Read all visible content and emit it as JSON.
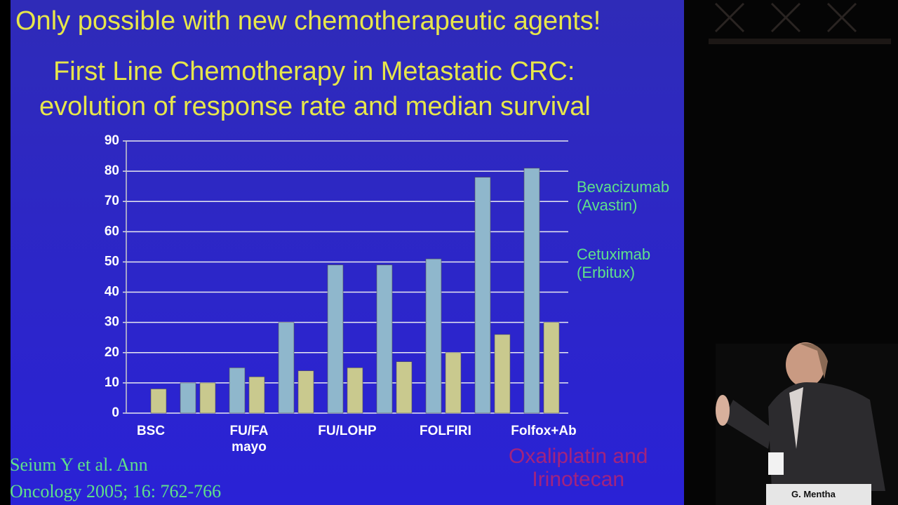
{
  "chart_data": {
    "type": "bar",
    "title": "Only possible with new chemotherapeutic agents!",
    "subtitle": [
      "First Line Chemotherapy in Metastatic CRC:",
      "evolution of response rate and median survival"
    ],
    "categories": [
      "BSC",
      null,
      "FU/FA\nmayo",
      null,
      "FU/LOHP",
      null,
      "FOLFIRI",
      null,
      "Folfox+Ab"
    ],
    "series": [
      {
        "color": "#8fb7cc",
        "values": [
          0,
          10,
          15,
          30,
          49,
          49,
          51,
          78,
          81
        ]
      },
      {
        "color": "#c9c98e",
        "values": [
          8,
          10,
          12,
          14,
          15,
          17,
          20,
          26,
          30
        ]
      }
    ],
    "ylim": [
      0,
      90
    ],
    "yticks": [
      0,
      10,
      20,
      30,
      40,
      50,
      60,
      70,
      80,
      90
    ],
    "grid": true,
    "annotations": [
      "Bevacizumab\n(Avastin)",
      "Cetuximab\n(Erbitux)",
      "Oxaliplatin  and\nIrinotecan"
    ]
  },
  "citation": "Seium Y et al. Ann\nOncology 2005; 16: 762-766",
  "name_tag": "G. Mentha"
}
